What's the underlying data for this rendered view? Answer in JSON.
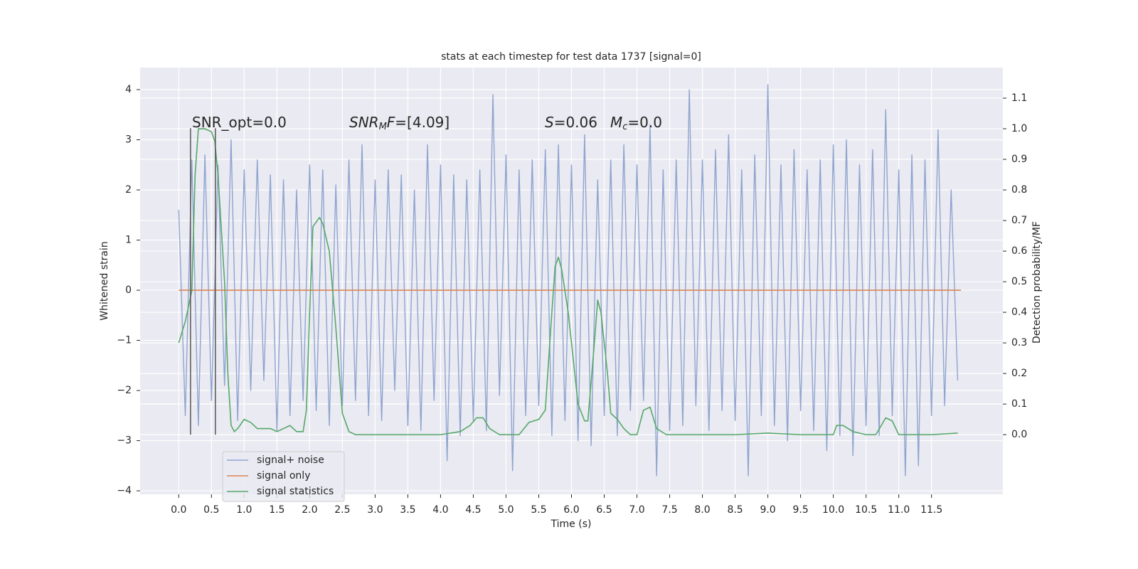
{
  "chart_data": {
    "type": "line",
    "title": "stats at each timestep for test data 1737 [signal=0]",
    "xlabel": "Time (s)",
    "ylabel": "Whitened strain",
    "y2label": "Detection probability/MF",
    "xlim": [
      -0.59,
      12.59
    ],
    "ylim": [
      -4.07,
      4.44
    ],
    "y2lim": [
      -0.195,
      1.2
    ],
    "xticks": [
      {
        "value": 0,
        "label": "0.0"
      },
      {
        "value": 0.5,
        "label": "0.5"
      },
      {
        "value": 1,
        "label": "1.0"
      },
      {
        "value": 1.5,
        "label": "1.5"
      },
      {
        "value": 2,
        "label": "2.0"
      },
      {
        "value": 2.5,
        "label": "2.5"
      },
      {
        "value": 3,
        "label": "3.0"
      },
      {
        "value": 3.5,
        "label": "3.5"
      },
      {
        "value": 4,
        "label": "4.0"
      },
      {
        "value": 4.5,
        "label": "4.5"
      },
      {
        "value": 5,
        "label": "5.0"
      },
      {
        "value": 5.5,
        "label": "5.5"
      },
      {
        "value": 6,
        "label": "6.0"
      },
      {
        "value": 6.5,
        "label": "6.5"
      },
      {
        "value": 7,
        "label": "7.0"
      },
      {
        "value": 7.5,
        "label": "7.5"
      },
      {
        "value": 8,
        "label": "8.0"
      },
      {
        "value": 8.5,
        "label": "8.5"
      },
      {
        "value": 9,
        "label": "9.0"
      },
      {
        "value": 9.5,
        "label": "9.5"
      },
      {
        "value": 10,
        "label": "10.0"
      },
      {
        "value": 10.5,
        "label": "10.5"
      },
      {
        "value": 11,
        "label": "11.0"
      },
      {
        "value": 11.5,
        "label": "11.5"
      }
    ],
    "yticks": [
      {
        "value": -4,
        "label": "−4"
      },
      {
        "value": -3,
        "label": "−3"
      },
      {
        "value": -2,
        "label": "−2"
      },
      {
        "value": -1,
        "label": "−1"
      },
      0,
      1,
      2,
      3,
      4
    ],
    "y2ticks": [
      {
        "value": 0,
        "label": "0.0"
      },
      0.1,
      0.2,
      0.3,
      0.4,
      0.5,
      0.6,
      0.7,
      0.8,
      0.9,
      {
        "value": 1,
        "label": "1.0"
      },
      1.1
    ],
    "grid": true,
    "legend": "lower left",
    "series": [
      {
        "name": "signal+ noise",
        "color": "#8fa4cf",
        "x": [
          0.0,
          0.1,
          0.2,
          0.3,
          0.4,
          0.5,
          0.6,
          0.7,
          0.8,
          0.9,
          1.0,
          1.1,
          1.2,
          1.3,
          1.4,
          1.5,
          1.6,
          1.7,
          1.8,
          1.9,
          2.0,
          2.1,
          2.2,
          2.3,
          2.4,
          2.5,
          2.6,
          2.7,
          2.8,
          2.9,
          3.0,
          3.1,
          3.2,
          3.3,
          3.4,
          3.5,
          3.6,
          3.7,
          3.8,
          3.9,
          4.0,
          4.1,
          4.2,
          4.3,
          4.4,
          4.5,
          4.6,
          4.7,
          4.8,
          4.9,
          5.0,
          5.1,
          5.2,
          5.3,
          5.4,
          5.5,
          5.6,
          5.7,
          5.8,
          5.9,
          6.0,
          6.1,
          6.2,
          6.3,
          6.4,
          6.5,
          6.6,
          6.7,
          6.8,
          6.9,
          7.0,
          7.1,
          7.2,
          7.3,
          7.4,
          7.5,
          7.6,
          7.7,
          7.8,
          7.9,
          8.0,
          8.1,
          8.2,
          8.3,
          8.4,
          8.5,
          8.6,
          8.7,
          8.8,
          8.9,
          9.0,
          9.1,
          9.2,
          9.3,
          9.4,
          9.5,
          9.6,
          9.7,
          9.8,
          9.9,
          10.0,
          10.1,
          10.2,
          10.3,
          10.4,
          10.5,
          10.6,
          10.7,
          10.8,
          10.9,
          11.0,
          11.1,
          11.2,
          11.3,
          11.4,
          11.5,
          11.6,
          11.7,
          11.8,
          11.9
        ],
        "values": [
          1.6,
          -2.5,
          2.6,
          -2.7,
          2.7,
          -2.2,
          2.5,
          -1.9,
          3.0,
          -2.6,
          2.4,
          -2.0,
          2.6,
          -1.8,
          2.3,
          -2.8,
          2.2,
          -2.5,
          2.0,
          -2.2,
          2.5,
          -2.4,
          2.4,
          -2.7,
          2.1,
          -2.3,
          2.6,
          -2.2,
          2.9,
          -2.5,
          2.2,
          -2.6,
          2.4,
          -2.0,
          2.3,
          -2.7,
          2.0,
          -2.8,
          2.9,
          -2.2,
          2.5,
          -3.4,
          2.3,
          -2.9,
          2.2,
          -2.6,
          2.4,
          -2.8,
          3.9,
          -2.1,
          2.7,
          -3.6,
          2.4,
          -2.5,
          2.6,
          -2.3,
          2.8,
          -2.9,
          2.9,
          -2.6,
          2.5,
          -3.0,
          3.1,
          -3.1,
          2.2,
          -2.5,
          2.6,
          -2.9,
          2.9,
          -2.4,
          2.5,
          -2.2,
          3.3,
          -3.7,
          2.4,
          -2.8,
          2.6,
          -2.7,
          4.0,
          -2.3,
          2.6,
          -2.8,
          2.8,
          -2.4,
          3.1,
          -2.6,
          2.4,
          -3.7,
          2.7,
          -2.5,
          4.1,
          -2.7,
          2.5,
          -3.0,
          2.8,
          -2.4,
          2.4,
          -2.8,
          2.6,
          -3.2,
          2.9,
          -2.9,
          3.0,
          -3.3,
          2.5,
          -2.7,
          2.8,
          -2.9,
          3.6,
          -2.5,
          2.4,
          -3.7,
          2.7,
          -3.5,
          2.6,
          -2.5,
          3.2,
          -2.3,
          2.0,
          -1.8
        ]
      },
      {
        "name": "signal only",
        "color": "#dd8452",
        "x": [
          0.0,
          11.95
        ],
        "values": [
          0,
          0
        ]
      },
      {
        "name": "signal statistics",
        "color": "#55a868",
        "axis": "y2",
        "x": [
          0,
          0.1,
          0.2,
          0.25,
          0.3,
          0.4,
          0.5,
          0.55,
          0.6,
          0.7,
          0.75,
          0.8,
          0.85,
          0.9,
          1.0,
          1.1,
          1.2,
          1.4,
          1.5,
          1.7,
          1.8,
          1.9,
          1.95,
          2.0,
          2.05,
          2.15,
          2.2,
          2.3,
          2.4,
          2.5,
          2.6,
          2.7,
          3.0,
          4.0,
          4.3,
          4.45,
          4.55,
          4.65,
          4.75,
          4.9,
          5.2,
          5.35,
          5.5,
          5.6,
          5.7,
          5.75,
          5.8,
          5.85,
          5.95,
          6.05,
          6.1,
          6.2,
          6.25,
          6.35,
          6.4,
          6.45,
          6.55,
          6.6,
          6.7,
          6.8,
          6.9,
          7.0,
          7.1,
          7.2,
          7.3,
          7.45,
          8.0,
          8.5,
          9.0,
          9.5,
          10.0,
          10.05,
          10.15,
          10.3,
          10.5,
          10.65,
          10.8,
          10.9,
          11.0,
          11.5,
          11.9
        ],
        "values": [
          0.3,
          0.37,
          0.47,
          0.85,
          1.0,
          1.0,
          0.99,
          0.96,
          0.85,
          0.5,
          0.2,
          0.03,
          0.01,
          0.02,
          0.05,
          0.04,
          0.02,
          0.02,
          0.01,
          0.03,
          0.01,
          0.01,
          0.08,
          0.4,
          0.68,
          0.71,
          0.69,
          0.6,
          0.35,
          0.07,
          0.01,
          0.0,
          0.0,
          0.0,
          0.01,
          0.03,
          0.055,
          0.055,
          0.02,
          0.0,
          0.0,
          0.04,
          0.05,
          0.08,
          0.4,
          0.55,
          0.58,
          0.54,
          0.4,
          0.2,
          0.1,
          0.045,
          0.045,
          0.3,
          0.44,
          0.4,
          0.2,
          0.07,
          0.05,
          0.02,
          0.0,
          0.0,
          0.08,
          0.09,
          0.02,
          0.0,
          0.0,
          0.0,
          0.005,
          0.0,
          0.0,
          0.03,
          0.03,
          0.01,
          0.0,
          0.0,
          0.055,
          0.045,
          0.0,
          0.0,
          0.005
        ]
      }
    ],
    "vlines": {
      "color": "#555555",
      "x": [
        0.18,
        0.56
      ],
      "ymin": -2.88,
      "ymax": 3.23
    },
    "annotations": [
      [
        {
          "text": "SNR_opt=0.0",
          "style": "normal"
        }
      ],
      [
        {
          "text": "SNR",
          "style": "italic"
        },
        {
          "text": "M",
          "style": "sub"
        },
        {
          "text": "F",
          "style": "italic"
        },
        {
          "text": "=[4.09]",
          "style": "normal"
        }
      ],
      [
        {
          "text": "S",
          "style": "italic"
        },
        {
          "text": "=0.06",
          "style": "normal"
        }
      ],
      [
        {
          "text": "M",
          "style": "italic"
        },
        {
          "text": "c",
          "style": "sub"
        },
        {
          "text": "=0.0",
          "style": "normal"
        }
      ]
    ]
  }
}
